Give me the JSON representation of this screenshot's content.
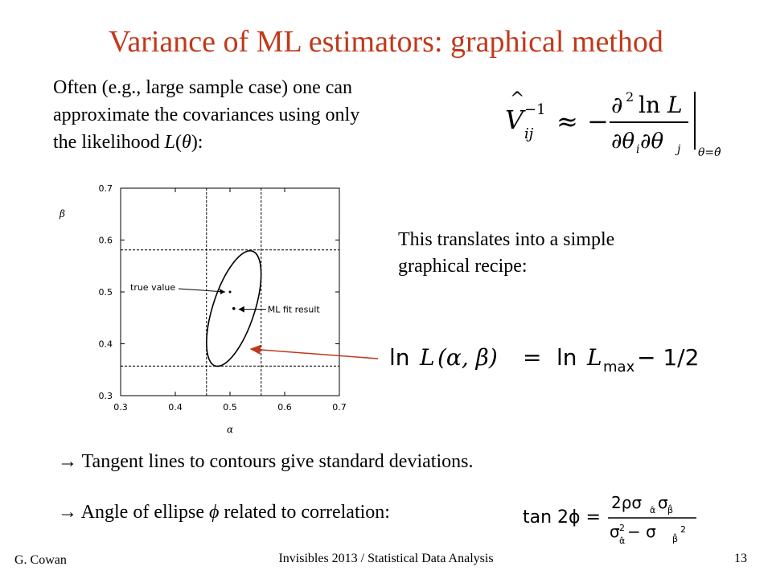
{
  "slide": {
    "title": "Variance of ML estimators:  graphical method",
    "intro_lines": [
      "Often (e.g., large sample case) one can",
      "approximate the covariances using only"
    ],
    "intro_line3_prefix": "the likelihood ",
    "intro_line3_func": "L",
    "intro_line3_open": "(",
    "intro_line3_var": "θ",
    "intro_line3_close": "):",
    "recipe_lines": [
      "This translates into a simple",
      "graphical recipe:"
    ],
    "bullet1": "→ Tangent lines to contours give standard deviations.",
    "bullet2_prefix": "→ Angle of ellipse ",
    "bullet2_symbol": "ϕ",
    "bullet2_suffix": " related to correlation:"
  },
  "formulas": {
    "covariance": {
      "lhs_V": "V",
      "lhs_sub": "ij",
      "lhs_sup": "−1",
      "approx": "≈",
      "minus": "−",
      "numerator_d": "∂",
      "numerator_exp": "2",
      "numerator_ln": "ln",
      "numerator_L": "L",
      "den_d1": "∂θ",
      "den_i": "i",
      "den_d2": " ∂θ",
      "den_j": "j",
      "eval_sub": "θ=θ̂"
    },
    "recipe_eq": {
      "ln": "ln",
      "L": "L",
      "args": "(α, β)",
      "eq": "=",
      "ln2": "ln",
      "L2": "L",
      "max_sub": "max",
      "rest": "− 1/2"
    },
    "tan_eq": {
      "lhs": "tan 2ϕ =",
      "numerator": "2ρσ",
      "num_sub1": "α̂",
      "num_sigma2": "σ",
      "num_sub2": "β̂",
      "den_sigma1": "σ",
      "den_sup1": "2",
      "den_sub1": "α̂",
      "den_minus": " − σ",
      "den_sub2": "β̂",
      "den_sup2": "2"
    }
  },
  "chart_data": {
    "type": "scatter",
    "xlabel": "α",
    "ylabel": "β",
    "xlim": [
      0.3,
      0.7
    ],
    "ylim": [
      0.3,
      0.7
    ],
    "xticks": [
      "0.3",
      "0.4",
      "0.5",
      "0.6",
      "0.7"
    ],
    "yticks": [
      "0.3",
      "0.4",
      "0.5",
      "0.6",
      "0.7"
    ],
    "points": [
      {
        "name": "true value",
        "x": 0.5,
        "y": 0.5
      },
      {
        "name": "ML fit result",
        "x": 0.507,
        "y": 0.468
      }
    ],
    "annotations": [
      "true value",
      "ML fit result"
    ],
    "contour": {
      "center": [
        0.507,
        0.468
      ],
      "vertical_lines": [
        0.457,
        0.557
      ],
      "horizontal_lines": [
        0.357,
        0.581
      ]
    },
    "grid": false
  },
  "footer": {
    "author": "G. Cowan",
    "center": "Invisibles 2013 / Statistical Data Analysis",
    "page": "13"
  },
  "colors": {
    "title": "#c0391b",
    "arrow": "#c0391b"
  }
}
